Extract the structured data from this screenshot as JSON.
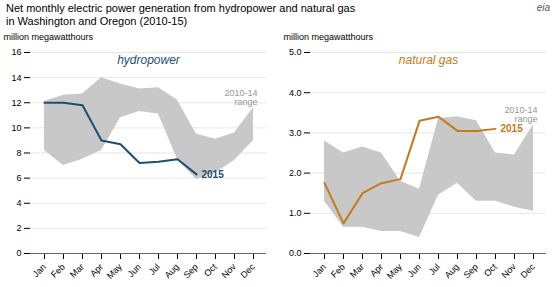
{
  "title": "Net monthly electric power generation from hydropower and natural gas",
  "subtitle": "in Washington and Oregon (2010-15)",
  "annotations": [
    "eia"
  ],
  "chart_data": [
    {
      "type": "line",
      "title": "hydropower",
      "categories": [
        "Jan",
        "Feb",
        "Mar",
        "Apr",
        "May",
        "Jun",
        "Jul",
        "Aug",
        "Sep",
        "Oct",
        "Nov",
        "Dec"
      ],
      "ylabel": "million megawatthours",
      "ylim": [
        0,
        16
      ],
      "yticks": [
        0,
        2,
        4,
        6,
        8,
        10,
        12,
        14,
        16
      ],
      "grid": true,
      "series": [
        {
          "name": "2010-14\nrange",
          "type": "area",
          "color": "#c8c8c8",
          "lower": [
            8.2,
            7.0,
            7.5,
            8.2,
            10.8,
            11.3,
            11.1,
            7.5,
            5.9,
            6.4,
            7.4,
            9.0
          ],
          "upper": [
            12.1,
            12.6,
            12.7,
            14.0,
            13.5,
            13.1,
            13.2,
            12.2,
            9.5,
            9.1,
            9.6,
            11.6
          ]
        },
        {
          "name": "2015",
          "type": "line",
          "color": "#1b4f72",
          "values": [
            12.0,
            12.0,
            11.8,
            9.0,
            8.7,
            7.2,
            7.3,
            7.5,
            6.3,
            null,
            null,
            null
          ]
        }
      ]
    },
    {
      "type": "line",
      "title": "natural gas",
      "categories": [
        "Jan",
        "Feb",
        "Mar",
        "Apr",
        "May",
        "Jun",
        "Jul",
        "Aug",
        "Sep",
        "Oct",
        "Nov",
        "Dec"
      ],
      "ylabel": "million megawatthours",
      "ylim": [
        0,
        5
      ],
      "yticks": [
        0,
        1,
        2,
        3,
        4,
        5
      ],
      "grid": true,
      "series": [
        {
          "name": "2010-14\nrange",
          "type": "area",
          "color": "#c8c8c8",
          "lower": [
            1.3,
            0.65,
            0.65,
            0.55,
            0.55,
            0.4,
            1.45,
            1.75,
            1.3,
            1.3,
            1.15,
            1.05
          ],
          "upper": [
            2.8,
            2.5,
            2.65,
            2.5,
            1.8,
            1.6,
            3.35,
            3.4,
            3.3,
            2.5,
            2.45,
            3.2
          ]
        },
        {
          "name": "2015",
          "type": "line",
          "color": "#c47a1a",
          "values": [
            1.75,
            0.75,
            1.5,
            1.75,
            1.85,
            3.3,
            3.4,
            3.05,
            3.05,
            3.1,
            null,
            null
          ]
        }
      ]
    }
  ]
}
